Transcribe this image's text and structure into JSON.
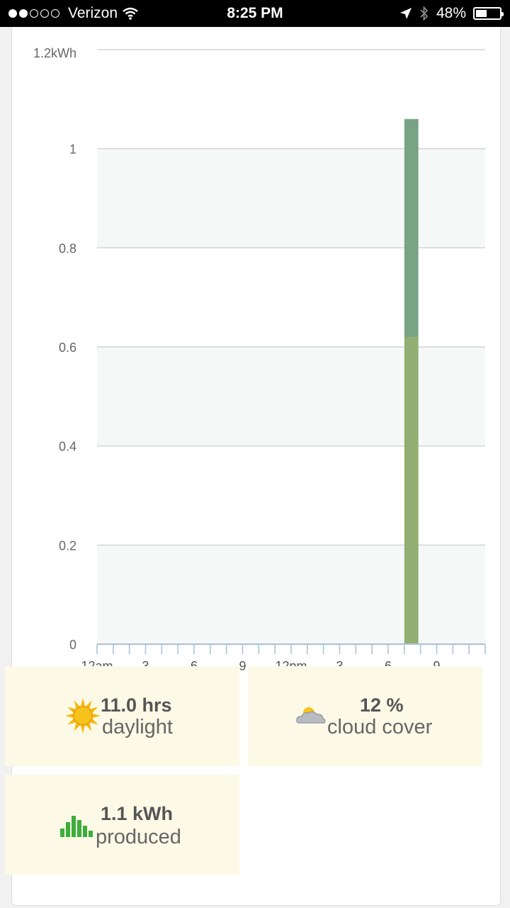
{
  "status_bar": {
    "carrier": "Verizon",
    "signal_bars_filled": 2,
    "signal_bars_total": 5,
    "time": "8:25 PM",
    "battery": "48%",
    "battery_level": 0.48
  },
  "chart_data": {
    "type": "bar",
    "ylabel_top": "1.2kWh",
    "yticks": [
      "0",
      "0.2",
      "0.4",
      "0.6",
      "0.8",
      "1"
    ],
    "ylim": [
      0,
      1.2
    ],
    "xticks": [
      "12am",
      "3",
      "6",
      "9",
      "12pm",
      "3",
      "6",
      "9"
    ],
    "x_hours_range": [
      0,
      23
    ],
    "bars": [
      {
        "hour": 19,
        "segments": [
          {
            "value": 0.62,
            "color": "#93ae72"
          },
          {
            "value": 0.44,
            "color": "#78a385"
          }
        ]
      }
    ],
    "grid": true,
    "band_color": "#f6f8f8"
  },
  "tiles": {
    "daylight": {
      "value": "11.0 hrs",
      "label": "daylight",
      "icon": "sun-icon"
    },
    "cloud": {
      "value": "12 %",
      "label": "cloud cover",
      "icon": "partly-cloudy-icon"
    },
    "produced": {
      "value": "1.1 kWh",
      "label": "produced",
      "icon": "bar-chart-icon"
    }
  },
  "colors": {
    "tile_bg": "#fcf9e6",
    "bar_green": "#93ae72",
    "bar_teal": "#78a385",
    "produced_icon": "#3cae3a"
  }
}
